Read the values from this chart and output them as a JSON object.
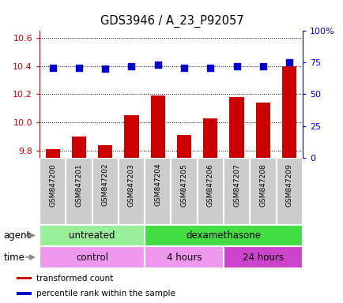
{
  "title": "GDS3946 / A_23_P92057",
  "samples": [
    "GSM847200",
    "GSM847201",
    "GSM847202",
    "GSM847203",
    "GSM847204",
    "GSM847205",
    "GSM847206",
    "GSM847207",
    "GSM847208",
    "GSM847209"
  ],
  "transformed_count": [
    9.81,
    9.9,
    9.84,
    10.05,
    10.19,
    9.91,
    10.03,
    10.18,
    10.14,
    10.4
  ],
  "percentile_rank": [
    71,
    71,
    70,
    72,
    73,
    71,
    71,
    72,
    72,
    75
  ],
  "bar_color": "#cc0000",
  "dot_color": "#0000cc",
  "ylim_left": [
    9.75,
    10.65
  ],
  "ylim_right": [
    0,
    100
  ],
  "yticks_left": [
    9.8,
    10.0,
    10.2,
    10.4,
    10.6
  ],
  "yticks_right": [
    0,
    25,
    50,
    75,
    100
  ],
  "ytick_labels_right": [
    "0",
    "25",
    "50",
    "75",
    "100%"
  ],
  "agent_groups": [
    {
      "label": "untreated",
      "start": 0,
      "end": 4,
      "color": "#99ee99"
    },
    {
      "label": "dexamethasone",
      "start": 4,
      "end": 10,
      "color": "#44dd44"
    }
  ],
  "time_groups": [
    {
      "label": "control",
      "start": 0,
      "end": 4,
      "color": "#ee99ee"
    },
    {
      "label": "4 hours",
      "start": 4,
      "end": 7,
      "color": "#ee99ee"
    },
    {
      "label": "24 hours",
      "start": 7,
      "end": 10,
      "color": "#cc44cc"
    }
  ],
  "agent_label": "agent",
  "time_label": "time",
  "legend_items": [
    {
      "color": "#cc0000",
      "label": "transformed count"
    },
    {
      "color": "#0000cc",
      "label": "percentile rank within the sample"
    }
  ],
  "bar_width": 0.55,
  "dot_size": 35,
  "grid_color": "black",
  "grid_style": "dotted",
  "baseline": 9.75,
  "xtick_bg_color": "#cccccc",
  "xtick_sep_color": "white"
}
